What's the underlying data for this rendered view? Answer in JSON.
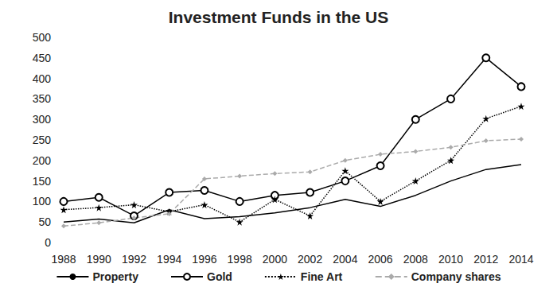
{
  "chart_data": {
    "type": "line",
    "title": "Investment Funds in the US",
    "categories": [
      "1988",
      "1990",
      "1992",
      "1994",
      "1996",
      "1998",
      "2000",
      "2002",
      "2004",
      "2006",
      "2008",
      "2010",
      "2012",
      "2014"
    ],
    "series": [
      {
        "name": "Property",
        "color": "#000000",
        "marker": "none",
        "line_style": "solid",
        "values": [
          50,
          57,
          48,
          80,
          58,
          63,
          72,
          85,
          105,
          88,
          115,
          150,
          178,
          190
        ]
      },
      {
        "name": "Gold",
        "color": "#000000",
        "marker": "circle",
        "line_style": "solid",
        "values": [
          100,
          110,
          65,
          122,
          127,
          100,
          115,
          122,
          150,
          187,
          300,
          350,
          450,
          380
        ]
      },
      {
        "name": "Fine Art",
        "color": "#000000",
        "marker": "star",
        "line_style": "dotted",
        "values": [
          80,
          85,
          92,
          75,
          92,
          50,
          105,
          65,
          175,
          100,
          150,
          200,
          302,
          332
        ]
      },
      {
        "name": "Company shares",
        "color": "#aaaaaa",
        "marker": "diamond",
        "line_style": "dashed",
        "values": [
          40,
          48,
          60,
          70,
          155,
          162,
          168,
          172,
          200,
          215,
          222,
          232,
          248,
          252
        ]
      }
    ],
    "ylim": [
      0,
      500
    ],
    "yticks": [
      0,
      50,
      100,
      150,
      200,
      250,
      300,
      350,
      400,
      450,
      500
    ],
    "grid": false,
    "legend": "bottom"
  }
}
